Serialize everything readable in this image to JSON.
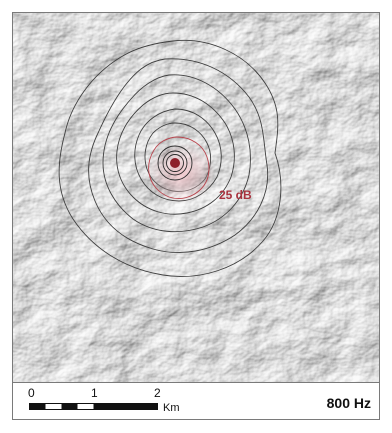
{
  "map": {
    "contour_label": "25 dB",
    "frequency": "800 Hz",
    "colors": {
      "contour": "#3f3f3f",
      "inner_contour": "#b9454e",
      "source_fill": "#8d1f2a",
      "relief_light": "#f2f2f2",
      "relief_shadow": "#9c9c9c"
    }
  },
  "scale_bar": {
    "ticks": [
      "0",
      "1",
      "2"
    ],
    "unit": "Km"
  }
}
